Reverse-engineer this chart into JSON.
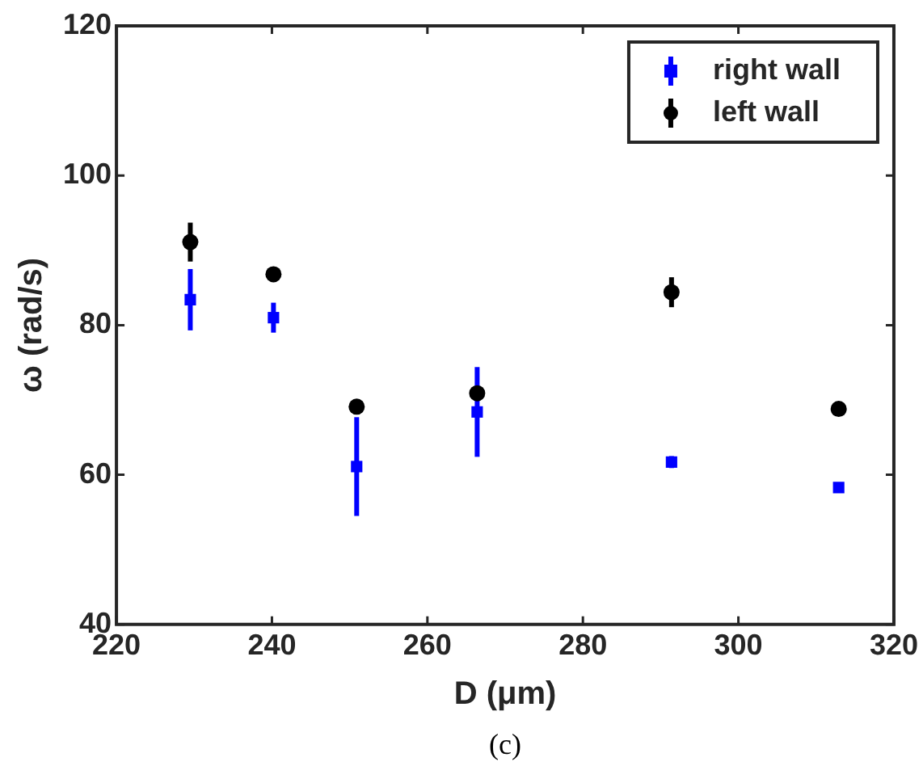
{
  "chart_data": {
    "type": "scatter",
    "xlabel": "D (μm)",
    "ylabel": "ω (rad/s)",
    "annotations": [
      "(c)"
    ],
    "xlim": [
      220,
      320
    ],
    "xticks": [
      220,
      240,
      260,
      280,
      300,
      320
    ],
    "ylim": [
      40,
      120
    ],
    "yticks": [
      40,
      60,
      80,
      100,
      120
    ],
    "grid": false,
    "legend": "top right",
    "series": [
      {
        "name": "right wall",
        "color": "#0000ff",
        "marker": "square",
        "x": [
          229.5,
          240.2,
          250.9,
          266.4,
          291.4,
          312.9
        ],
        "values": [
          83.4,
          81.0,
          61.1,
          68.4,
          61.7,
          58.3
        ],
        "errors": [
          4.1,
          2,
          6.6,
          6,
          0.8,
          null
        ]
      },
      {
        "name": "left wall",
        "color": "#000000",
        "marker": "circle",
        "x": [
          229.5,
          240.2,
          250.9,
          266.4,
          291.4,
          312.9
        ],
        "values": [
          91.1,
          86.8,
          69.1,
          70.9,
          84.4,
          68.8
        ],
        "errors": [
          2.6,
          null,
          null,
          null,
          2,
          null
        ]
      }
    ]
  }
}
